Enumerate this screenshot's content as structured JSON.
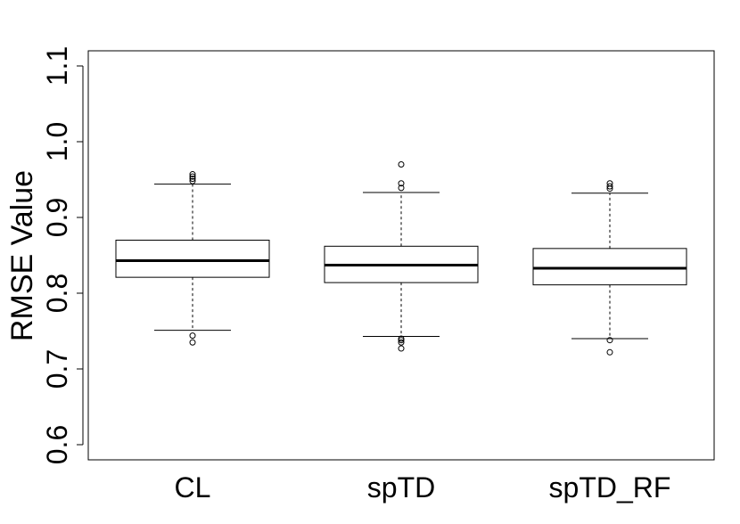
{
  "chart_data": {
    "type": "box",
    "title": "",
    "xlabel": "",
    "ylabel": "RMSE  Value",
    "ylim": [
      0.58,
      1.12
    ],
    "yticks": [
      0.6,
      0.7,
      0.8,
      0.9,
      1.0,
      1.1
    ],
    "ytick_labels": [
      "0.6",
      "0.7",
      "0.8",
      "0.9",
      "1.0",
      "1.1"
    ],
    "grid": false,
    "categories": [
      "CL",
      "spTD",
      "spTD_RF"
    ],
    "boxes": [
      {
        "name": "CL",
        "whisker_low": 0.751,
        "q1": 0.821,
        "median": 0.843,
        "q3": 0.87,
        "whisker_high": 0.944,
        "outliers": [
          0.735,
          0.744,
          0.948,
          0.951,
          0.954,
          0.957
        ]
      },
      {
        "name": "spTD",
        "whisker_low": 0.743,
        "q1": 0.814,
        "median": 0.837,
        "q3": 0.862,
        "whisker_high": 0.933,
        "outliers": [
          0.727,
          0.735,
          0.738,
          0.74,
          0.939,
          0.945,
          0.97
        ]
      },
      {
        "name": "spTD_RF",
        "whisker_low": 0.74,
        "q1": 0.811,
        "median": 0.833,
        "q3": 0.859,
        "whisker_high": 0.932,
        "outliers": [
          0.722,
          0.738,
          0.938,
          0.941,
          0.945
        ]
      }
    ]
  }
}
